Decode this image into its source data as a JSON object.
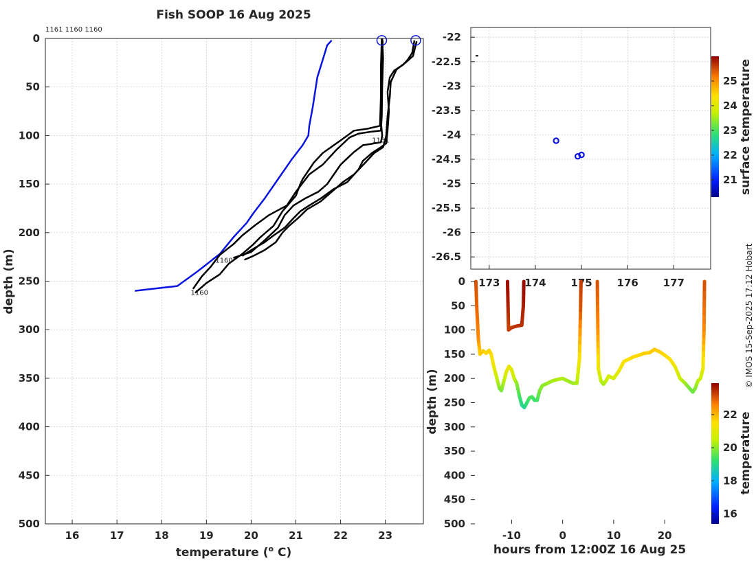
{
  "chart_data": [
    {
      "id": "profile",
      "type": "line",
      "title": "Fish SOOP 16 Aug 2025",
      "xlabel": "temperature (",
      "xlabel_sup": "o",
      "xlabel_tail": " C)",
      "ylabel": "depth (m)",
      "xlim": [
        15.4,
        23.85
      ],
      "ylim": [
        0,
        500
      ],
      "xticks": [
        16,
        17,
        18,
        19,
        20,
        21,
        22,
        23
      ],
      "yticks": [
        0,
        50,
        100,
        150,
        200,
        250,
        300,
        350,
        400,
        450,
        500
      ],
      "top_labels": "1161 1160 1160",
      "series": [
        {
          "name": "climatology",
          "color": "#0a14e0",
          "points": [
            [
              21.8,
              2
            ],
            [
              21.7,
              7
            ],
            [
              21.6,
              22
            ],
            [
              21.48,
              40
            ],
            [
              21.38,
              70
            ],
            [
              21.3,
              90
            ],
            [
              21.28,
              100
            ],
            [
              21.15,
              110
            ],
            [
              20.9,
              125
            ],
            [
              20.6,
              145
            ],
            [
              20.3,
              165
            ],
            [
              20.05,
              180
            ],
            [
              19.9,
              190
            ],
            [
              19.6,
              205
            ],
            [
              19.3,
              222
            ],
            [
              18.8,
              240
            ],
            [
              18.35,
              255
            ],
            [
              17.4,
              260
            ]
          ]
        },
        {
          "name": "profile-a",
          "color": "#000000",
          "points": [
            [
              22.93,
              0
            ],
            [
              22.95,
              20
            ],
            [
              22.93,
              50
            ],
            [
              22.92,
              80
            ],
            [
              22.9,
              95
            ],
            [
              22.7,
              96
            ],
            [
              22.4,
              98
            ],
            [
              22.2,
              102
            ],
            [
              21.9,
              115
            ],
            [
              21.6,
              130
            ],
            [
              21.3,
              140
            ],
            [
              21.0,
              158
            ],
            [
              20.8,
              172
            ],
            [
              20.4,
              182
            ],
            [
              20.1,
              192
            ],
            [
              19.8,
              203
            ],
            [
              19.6,
              212
            ],
            [
              19.3,
              223
            ],
            [
              19.1,
              235
            ],
            [
              18.9,
              245
            ],
            [
              18.7,
              258
            ]
          ]
        },
        {
          "name": "profile-b",
          "color": "#000000",
          "points": [
            [
              22.92,
              0
            ],
            [
              22.9,
              30
            ],
            [
              22.9,
              60
            ],
            [
              22.88,
              90
            ],
            [
              22.6,
              93
            ],
            [
              22.3,
              95
            ],
            [
              22.0,
              105
            ],
            [
              21.6,
              118
            ],
            [
              21.4,
              128
            ],
            [
              21.15,
              145
            ],
            [
              21.1,
              150
            ],
            [
              21.0,
              162
            ],
            [
              20.7,
              178
            ],
            [
              20.5,
              193
            ],
            [
              20.2,
              205
            ],
            [
              20.05,
              212
            ],
            [
              19.8,
              222
            ],
            [
              19.5,
              232
            ],
            [
              19.3,
              243
            ],
            [
              19.0,
              252
            ],
            [
              18.75,
              262
            ]
          ]
        },
        {
          "name": "profile-c",
          "color": "#000000",
          "points": [
            [
              22.94,
              2
            ],
            [
              22.93,
              25
            ],
            [
              22.92,
              55
            ],
            [
              22.9,
              85
            ],
            [
              22.93,
              100
            ],
            [
              22.9,
              107
            ],
            [
              22.5,
              110
            ],
            [
              22.3,
              117
            ],
            [
              22.0,
              130
            ],
            [
              21.7,
              150
            ],
            [
              21.5,
              158
            ],
            [
              21.2,
              165
            ],
            [
              20.95,
              172
            ],
            [
              20.75,
              182
            ],
            [
              20.6,
              195
            ],
            [
              20.3,
              208
            ],
            [
              20.0,
              220
            ],
            [
              19.6,
              226
            ]
          ]
        },
        {
          "name": "profile-d",
          "color": "#000000",
          "points": [
            [
              23.65,
              2
            ],
            [
              23.6,
              15
            ],
            [
              23.5,
              22
            ],
            [
              23.4,
              27
            ],
            [
              23.2,
              33
            ],
            [
              23.1,
              40
            ],
            [
              23.05,
              55
            ],
            [
              23.08,
              75
            ],
            [
              23.05,
              95
            ],
            [
              23.02,
              108
            ],
            [
              22.9,
              112
            ],
            [
              22.7,
              118
            ],
            [
              22.5,
              126
            ],
            [
              22.4,
              135
            ],
            [
              22.15,
              148
            ],
            [
              21.85,
              155
            ],
            [
              21.55,
              165
            ],
            [
              21.3,
              172
            ],
            [
              21.1,
              178
            ],
            [
              20.95,
              185
            ],
            [
              20.75,
              195
            ],
            [
              20.5,
              203
            ],
            [
              20.3,
              210
            ],
            [
              20.0,
              218
            ],
            [
              19.8,
              224
            ]
          ]
        },
        {
          "name": "profile-e",
          "color": "#000000",
          "points": [
            [
              23.7,
              3
            ],
            [
              23.62,
              18
            ],
            [
              23.45,
              25
            ],
            [
              23.25,
              32
            ],
            [
              23.12,
              45
            ],
            [
              23.1,
              60
            ],
            [
              23.05,
              80
            ],
            [
              23.02,
              100
            ],
            [
              22.95,
              112
            ],
            [
              22.75,
              118
            ],
            [
              22.55,
              128
            ],
            [
              22.3,
              140
            ],
            [
              22.05,
              148
            ],
            [
              21.8,
              158
            ],
            [
              21.55,
              168
            ],
            [
              21.25,
              176
            ],
            [
              21.05,
              185
            ],
            [
              20.85,
              193
            ],
            [
              20.7,
              200
            ],
            [
              20.55,
              210
            ],
            [
              20.3,
              218
            ],
            [
              20.05,
              224
            ],
            [
              19.85,
              228
            ]
          ]
        }
      ],
      "markers": [
        {
          "x": 22.92,
          "y": 2
        },
        {
          "x": 23.68,
          "y": 2
        }
      ],
      "point_labels": [
        {
          "x": 22.7,
          "y": 107,
          "text": "1161"
        },
        {
          "x": 19.2,
          "y": 231,
          "text": "1160"
        },
        {
          "x": 18.65,
          "y": 264,
          "text": "1160"
        }
      ]
    },
    {
      "id": "map",
      "type": "scatter",
      "colorbar_label": "surface temperature",
      "colorbar_ticks": [
        21,
        22,
        23,
        24,
        25
      ],
      "colorbar_range": [
        20.3,
        26.0
      ],
      "xlim": [
        172.6,
        177.8
      ],
      "ylim": [
        -26.75,
        -21.8
      ],
      "xticks": [
        173,
        174,
        175,
        176,
        177
      ],
      "xtick_labels": [
        "173",
        "174",
        "175",
        "176",
        "177"
      ],
      "yticks": [
        -22,
        -22.5,
        -23,
        -23.5,
        -24,
        -24.5,
        -25,
        -25.5,
        -26,
        -26.5
      ],
      "ytick_labels": [
        "-22",
        "-22.5",
        "-23",
        "-23.5",
        "-24",
        "-24.5",
        "-25",
        "-25.5",
        "-26",
        "-26.5"
      ],
      "points": [
        {
          "lon": 174.45,
          "lat": -24.12
        },
        {
          "lon": 174.92,
          "lat": -24.44
        },
        {
          "lon": 175.0,
          "lat": -24.41
        }
      ],
      "tick_mark": {
        "lon": 172.63,
        "lat": -22.38
      }
    },
    {
      "id": "section",
      "type": "scatter",
      "xlabel": "hours from 12:00Z 16 Aug 25",
      "ylabel": "depth (m)",
      "colorbar_label": "temperature",
      "colorbar_ticks": [
        16,
        18,
        20,
        22
      ],
      "colorbar_range": [
        15.4,
        23.9
      ],
      "xlim": [
        -18,
        29
      ],
      "ylim": [
        0,
        500
      ],
      "xticks": [
        -10,
        0,
        10,
        20
      ],
      "yticks": [
        0,
        50,
        100,
        150,
        200,
        250,
        300,
        350,
        400,
        450,
        500
      ],
      "segments": [
        {
          "points": [
            [
              -17,
              0,
              23.1
            ],
            [
              -16.8,
              60,
              22.9
            ],
            [
              -16.5,
              120,
              22.5
            ],
            [
              -16.2,
              150,
              21.7
            ],
            [
              -15.6,
              143,
              21.8
            ],
            [
              -15,
              148,
              21.6
            ],
            [
              -14.4,
              142,
              21.7
            ],
            [
              -14,
              150,
              21.6
            ],
            [
              -13.5,
              175,
              21.2
            ],
            [
              -13,
              195,
              20.7
            ],
            [
              -12.4,
              220,
              20.0
            ],
            [
              -12,
              225,
              19.8
            ],
            [
              -11.5,
              205,
              20.3
            ],
            [
              -11,
              185,
              20.9
            ],
            [
              -10.5,
              175,
              21.2
            ],
            [
              -10,
              182,
              21.0
            ],
            [
              -9.5,
              200,
              20.6
            ],
            [
              -9,
              210,
              20.1
            ],
            [
              -8.5,
              235,
              19.5
            ],
            [
              -8,
              255,
              19.0
            ],
            [
              -7.5,
              260,
              18.9
            ],
            [
              -7,
              250,
              19.2
            ],
            [
              -6.5,
              240,
              19.4
            ],
            [
              -6,
              238,
              19.5
            ],
            [
              -5.5,
              245,
              19.3
            ],
            [
              -5,
              245,
              19.3
            ],
            [
              -4.5,
              225,
              19.8
            ],
            [
              -4,
              215,
              20.0
            ],
            [
              -3,
              210,
              20.1
            ],
            [
              -2,
              205,
              20.2
            ],
            [
              -1,
              202,
              20.3
            ],
            [
              0,
              200,
              20.3
            ],
            [
              1,
              205,
              20.2
            ],
            [
              2,
              210,
              20.1
            ],
            [
              2.8,
              210,
              20.2
            ],
            [
              3.3,
              160,
              21.3
            ],
            [
              3.5,
              60,
              23.0
            ],
            [
              3.6,
              0,
              23.3
            ]
          ]
        },
        {
          "points": [
            [
              -10.8,
              0,
              23.8
            ],
            [
              -10.7,
              50,
              23.6
            ],
            [
              -10.6,
              100,
              23.2
            ],
            [
              -10,
              95,
              23.3
            ],
            [
              -9,
              92,
              23.4
            ],
            [
              -8,
              90,
              23.4
            ],
            [
              -7.7,
              50,
              23.6
            ],
            [
              -7.6,
              0,
              23.8
            ]
          ]
        },
        {
          "points": [
            [
              6.8,
              0,
              23.1
            ],
            [
              6.9,
              100,
              22.5
            ],
            [
              7,
              180,
              21.2
            ],
            [
              7.5,
              205,
              20.5
            ],
            [
              8,
              212,
              20.2
            ],
            [
              8.5,
              205,
              20.4
            ],
            [
              9,
              195,
              20.7
            ],
            [
              10,
              200,
              20.7
            ],
            [
              11,
              185,
              21.0
            ],
            [
              12,
              165,
              21.4
            ],
            [
              13,
              160,
              21.5
            ],
            [
              14,
              155,
              21.6
            ],
            [
              15,
              152,
              21.6
            ],
            [
              16,
              148,
              21.7
            ],
            [
              17,
              147,
              21.7
            ],
            [
              18,
              140,
              21.8
            ],
            [
              19,
              145,
              21.7
            ],
            [
              20,
              152,
              21.6
            ],
            [
              21,
              160,
              21.5
            ],
            [
              22,
              175,
              21.2
            ],
            [
              23,
              200,
              20.6
            ],
            [
              24,
              210,
              20.2
            ],
            [
              25,
              222,
              19.8
            ],
            [
              25.5,
              228,
              19.7
            ],
            [
              26,
              220,
              19.9
            ],
            [
              26.5,
              205,
              20.3
            ],
            [
              27,
              200,
              20.5
            ],
            [
              27.5,
              180,
              21.0
            ],
            [
              27.7,
              100,
              22.5
            ],
            [
              27.8,
              0,
              23.1
            ]
          ]
        }
      ]
    }
  ],
  "credit": "© IMOS 15-Sep-2025 17:12 Hobart"
}
